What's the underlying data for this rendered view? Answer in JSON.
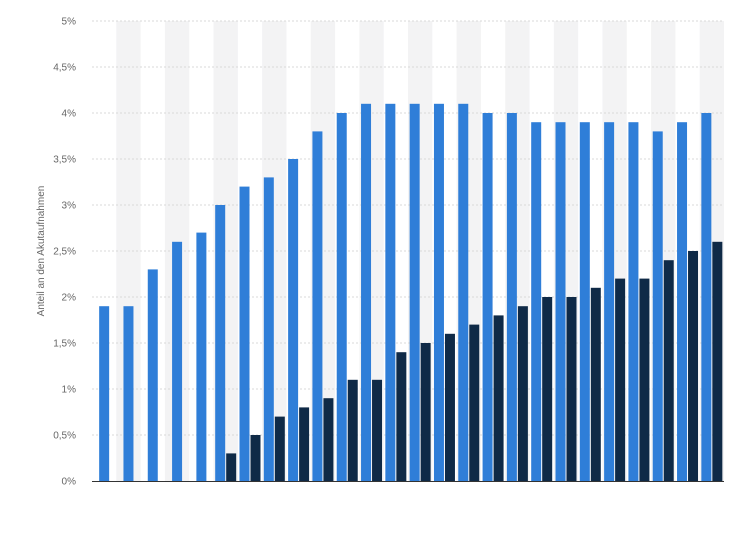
{
  "chart_data": {
    "type": "bar",
    "title": "",
    "xlabel": "",
    "ylabel": "Anteil an den Akutaufnahmen",
    "ylim": [
      0,
      5
    ],
    "y_ticks": [
      {
        "value": 0,
        "label": "0%"
      },
      {
        "value": 0.5,
        "label": "0,5%"
      },
      {
        "value": 1,
        "label": "1%"
      },
      {
        "value": 1.5,
        "label": "1,5%"
      },
      {
        "value": 2,
        "label": "2%"
      },
      {
        "value": 2.5,
        "label": "2,5%"
      },
      {
        "value": 3,
        "label": "3%"
      },
      {
        "value": 3.5,
        "label": "3,5%"
      },
      {
        "value": 4,
        "label": "4%"
      },
      {
        "value": 4.5,
        "label": "4,5%"
      },
      {
        "value": 5,
        "label": "5%"
      }
    ],
    "grid": true,
    "legend": "none",
    "colors": {
      "series_a": "#2f7ed8",
      "series_b": "#0f2a47",
      "band_alt": "#f3f3f4",
      "grid": "#d8d8d8",
      "axis": "#333333",
      "text": "#666666"
    },
    "series": [
      {
        "values": [
          1.9,
          1.9,
          2.3,
          2.6,
          2.7,
          3.0,
          3.2,
          3.3,
          3.5,
          3.8,
          4.0,
          4.1,
          4.1,
          4.1,
          4.1,
          4.1,
          4.0,
          4.0,
          3.9,
          3.9,
          3.9,
          3.9,
          3.9,
          3.8,
          3.9,
          4.0
        ]
      },
      {
        "values": [
          null,
          null,
          null,
          null,
          null,
          0.3,
          0.5,
          0.7,
          0.8,
          0.9,
          1.1,
          1.1,
          1.4,
          1.5,
          1.6,
          1.7,
          1.8,
          1.9,
          2.0,
          2.0,
          2.1,
          2.2,
          2.2,
          2.4,
          2.5,
          2.6
        ]
      }
    ]
  }
}
